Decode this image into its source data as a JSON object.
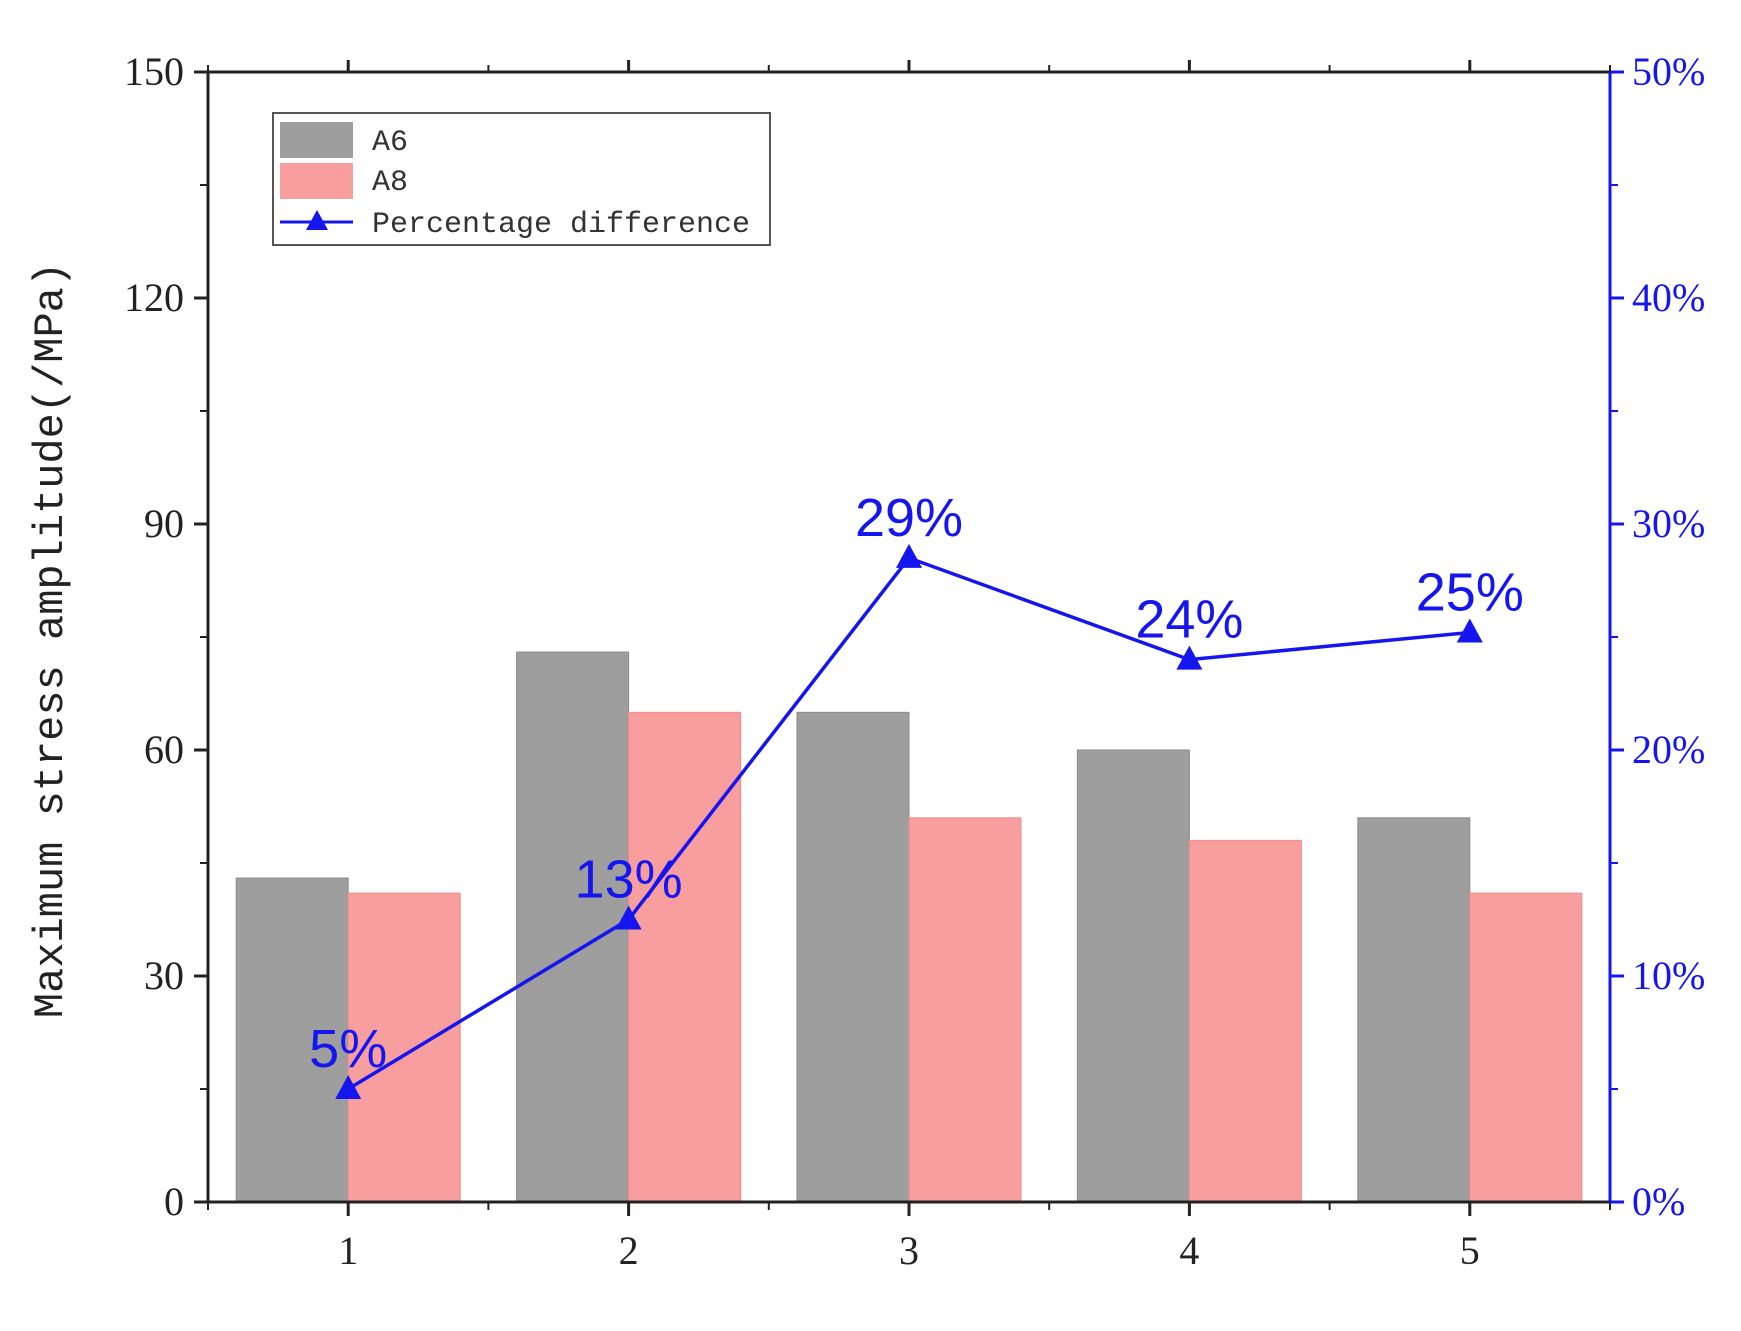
{
  "chart_data": {
    "type": "bar",
    "title": "",
    "xlabel": "",
    "ylabel": "Maximum stress amplitude(/MPa)",
    "y2label": "",
    "categories": [
      "1",
      "2",
      "3",
      "4",
      "5"
    ],
    "ylim": [
      0,
      150
    ],
    "yticks": [
      "0",
      "30",
      "60",
      "90",
      "120",
      "150"
    ],
    "y2lim": [
      0,
      50
    ],
    "y2ticks": [
      "0%",
      "10%",
      "20%",
      "30%",
      "40%",
      "50%"
    ],
    "series": [
      {
        "name": "A6",
        "type": "bar",
        "color": "#9e9e9e",
        "values": [
          43,
          73,
          65,
          60,
          51
        ]
      },
      {
        "name": "A8",
        "type": "bar",
        "color": "#f99e9e",
        "values": [
          41,
          65,
          51,
          48,
          41
        ]
      },
      {
        "name": "Percentage difference",
        "type": "line",
        "axis": "right",
        "color": "#1515f0",
        "marker": "triangle",
        "values": [
          5,
          12.5,
          28.5,
          24,
          25.2
        ],
        "labels": [
          "5%",
          "13%",
          "29%",
          "24%",
          "25%"
        ]
      }
    ],
    "legend": {
      "position": "top-left",
      "entries": [
        "A6",
        "A8",
        "Percentage difference"
      ]
    },
    "grid": false
  }
}
